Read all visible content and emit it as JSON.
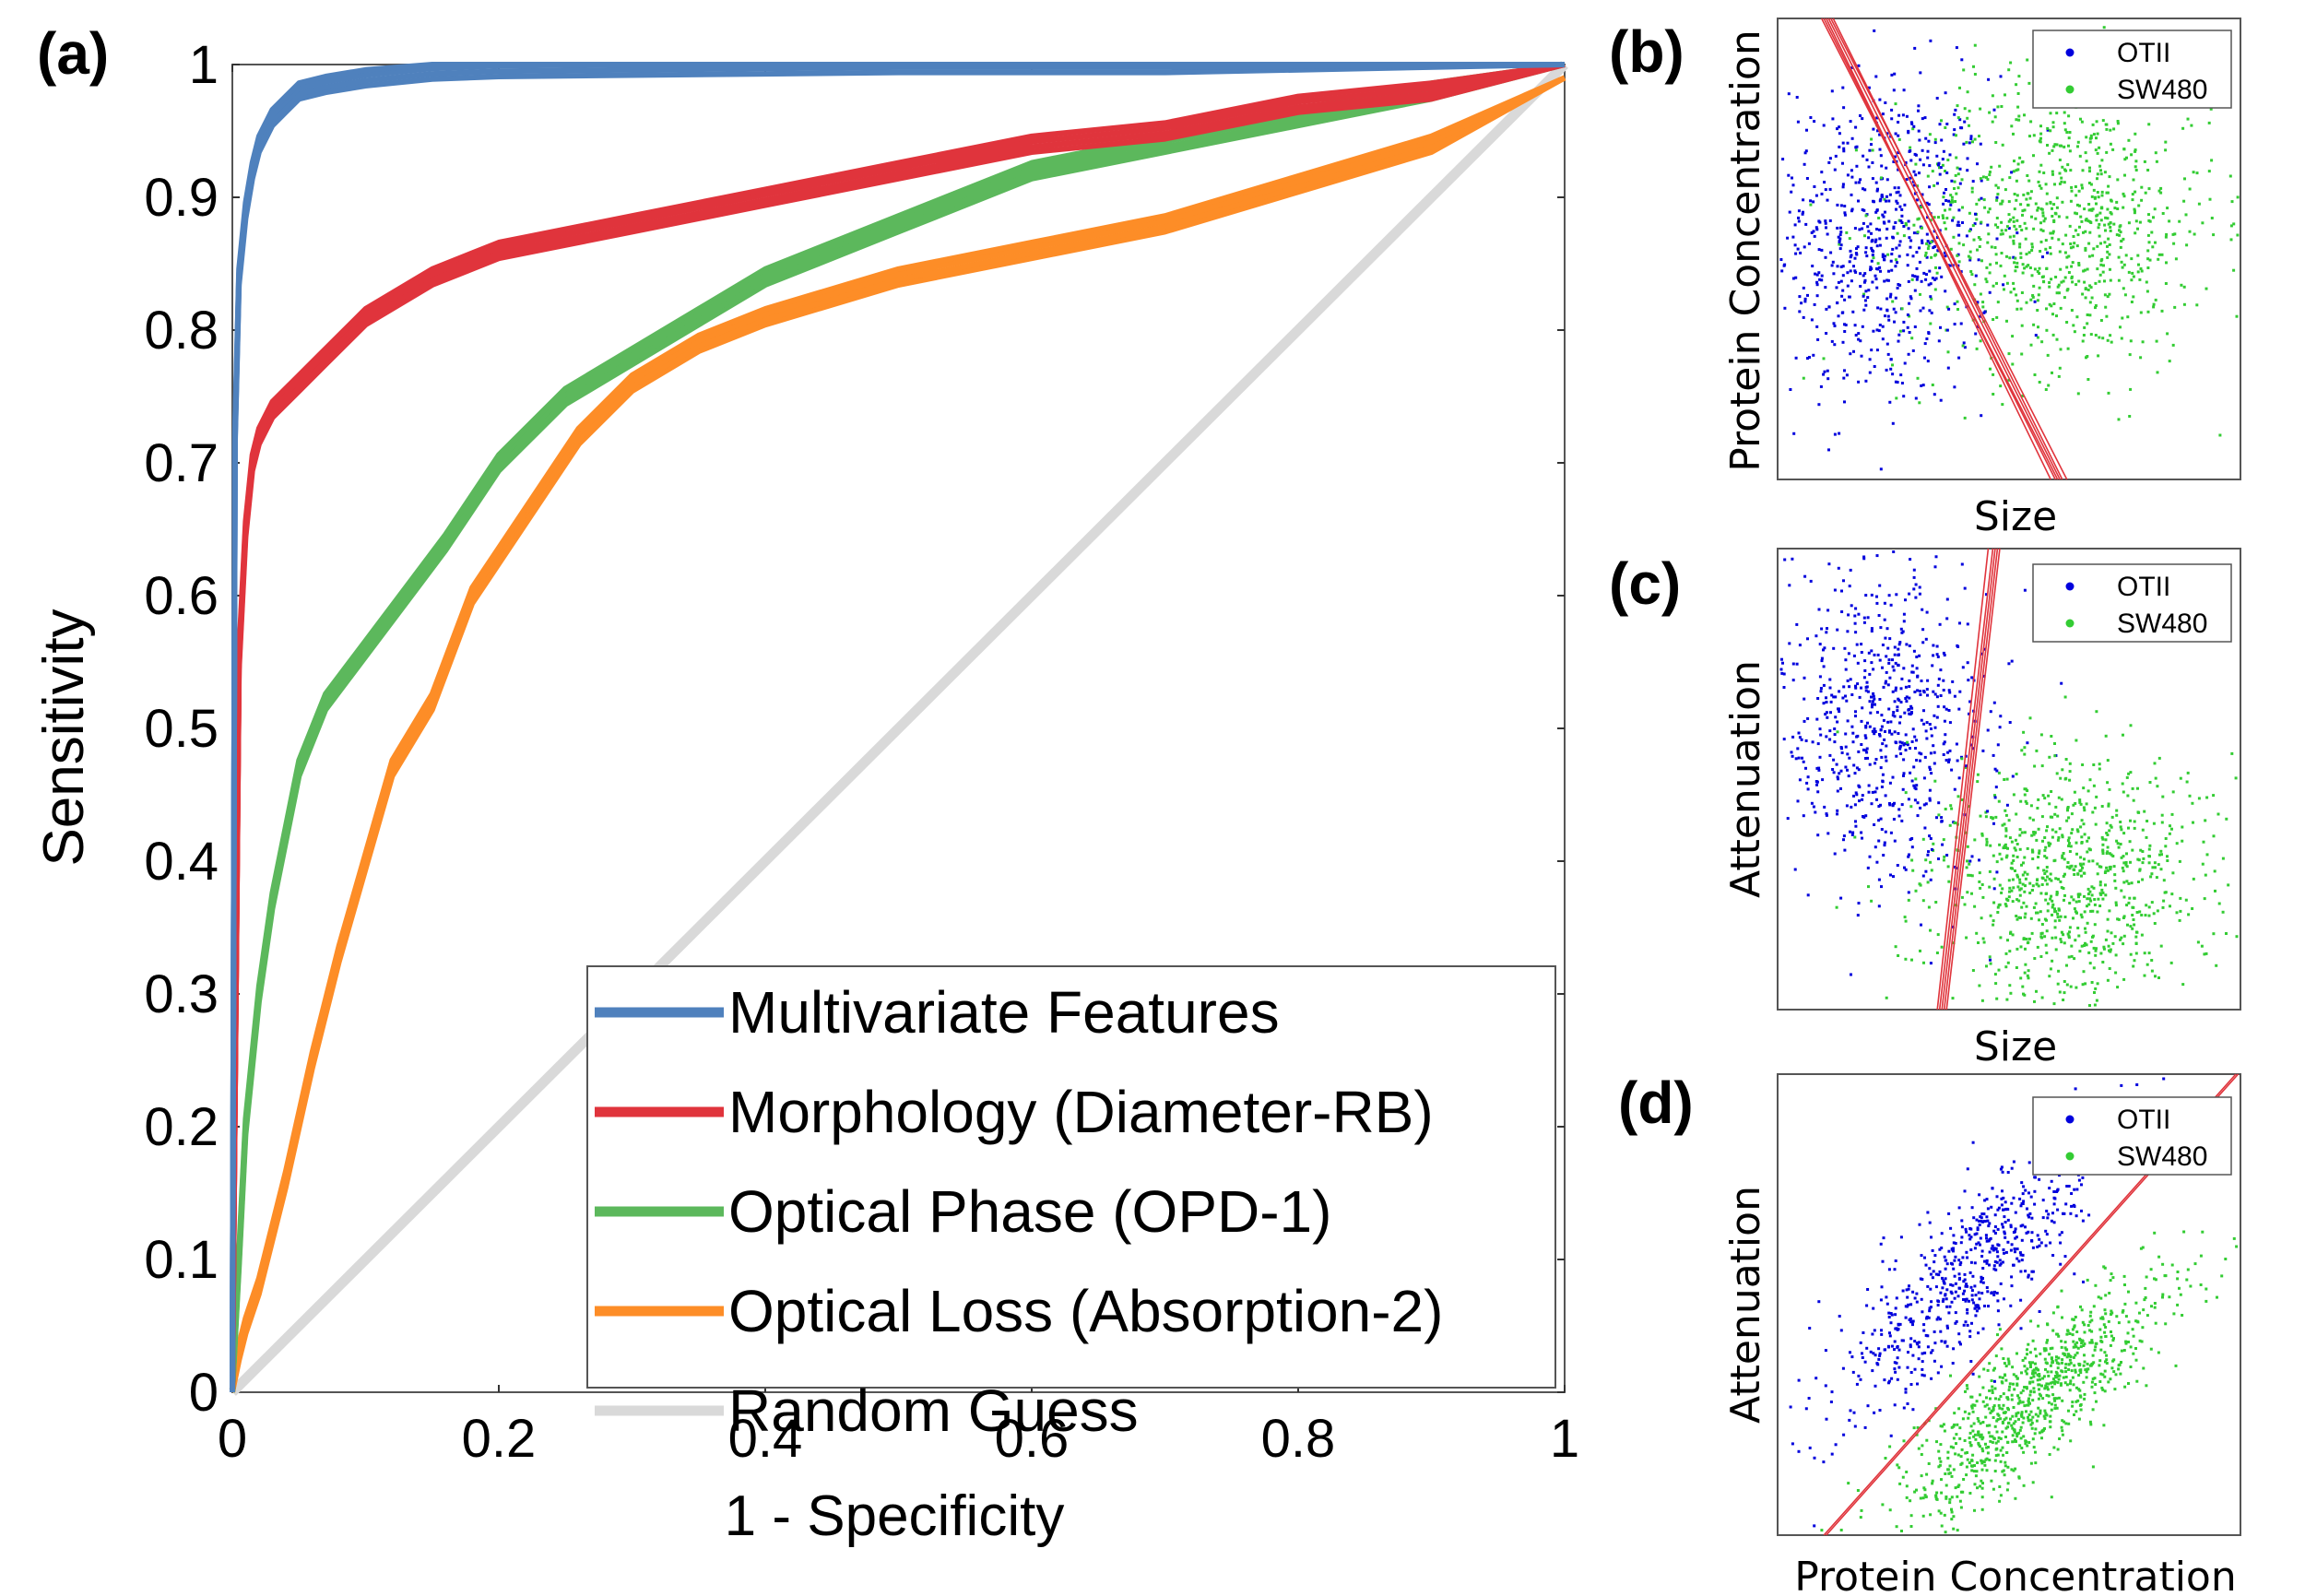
{
  "chart_data": [
    {
      "panel": "(a)",
      "type": "line",
      "xlabel": "1 - Specificity",
      "ylabel": "Sensitivity",
      "xlim": [
        0,
        1
      ],
      "ylim": [
        0,
        1
      ],
      "xticks": [
        "0",
        "0.2",
        "0.4",
        "0.6",
        "0.8",
        "1"
      ],
      "yticks": [
        "0",
        "0.1",
        "0.2",
        "0.3",
        "0.4",
        "0.5",
        "0.6",
        "0.7",
        "0.8",
        "0.9",
        "1"
      ],
      "legend_position": "bottom-right",
      "series": [
        {
          "name": "Multivariate Features",
          "color": "#4f81bd",
          "x": [
            0,
            0.002,
            0.005,
            0.01,
            0.015,
            0.02,
            0.03,
            0.04,
            0.05,
            0.07,
            0.1,
            0.15,
            0.2,
            0.3,
            0.4,
            0.5,
            0.7,
            1.0
          ],
          "y": [
            0,
            0.72,
            0.84,
            0.89,
            0.92,
            0.94,
            0.96,
            0.97,
            0.98,
            0.985,
            0.99,
            0.995,
            0.997,
            0.998,
            0.999,
            1.0,
            1.0,
            1.0
          ]
        },
        {
          "name": "Morphology (Diameter-RB)",
          "color": "#e0343c",
          "x": [
            0,
            0.005,
            0.01,
            0.015,
            0.02,
            0.03,
            0.05,
            0.07,
            0.1,
            0.15,
            0.2,
            0.25,
            0.3,
            0.4,
            0.5,
            0.6,
            0.7,
            0.8,
            0.9,
            1.0
          ],
          "y": [
            0,
            0.55,
            0.65,
            0.7,
            0.72,
            0.74,
            0.76,
            0.78,
            0.81,
            0.84,
            0.86,
            0.87,
            0.88,
            0.9,
            0.92,
            0.94,
            0.95,
            0.97,
            0.98,
            1.0
          ]
        },
        {
          "name": "Optical Phase (OPD-1)",
          "color": "#5cb85c",
          "x": [
            0,
            0.005,
            0.01,
            0.02,
            0.03,
            0.05,
            0.07,
            0.1,
            0.13,
            0.16,
            0.2,
            0.25,
            0.3,
            0.35,
            0.4,
            0.5,
            0.6,
            0.7,
            0.8,
            0.9,
            1.0
          ],
          "y": [
            0,
            0.1,
            0.2,
            0.3,
            0.37,
            0.47,
            0.52,
            0.56,
            0.6,
            0.64,
            0.7,
            0.75,
            0.78,
            0.81,
            0.84,
            0.88,
            0.92,
            0.94,
            0.96,
            0.98,
            1.0
          ]
        },
        {
          "name": "Optical Loss (Absorption-2)",
          "color": "#fd8d27",
          "x": [
            0,
            0.005,
            0.01,
            0.02,
            0.04,
            0.06,
            0.08,
            0.1,
            0.12,
            0.15,
            0.18,
            0.22,
            0.26,
            0.3,
            0.35,
            0.4,
            0.5,
            0.6,
            0.7,
            0.8,
            0.9,
            1.0
          ],
          "y": [
            0,
            0.03,
            0.05,
            0.08,
            0.16,
            0.25,
            0.33,
            0.4,
            0.47,
            0.52,
            0.6,
            0.66,
            0.72,
            0.76,
            0.79,
            0.81,
            0.84,
            0.86,
            0.88,
            0.91,
            0.94,
            0.99
          ]
        },
        {
          "name": "Random Guess",
          "color": "#d9d9d9",
          "x": [
            0,
            1
          ],
          "y": [
            0,
            1
          ]
        }
      ]
    },
    {
      "panel": "(b)",
      "type": "scatter",
      "xlabel": "Size",
      "ylabel": "Protein Concentration",
      "legend_position": "top-right",
      "series": [
        {
          "name": "OTII",
          "color": "#0000dd"
        },
        {
          "name": "SW480",
          "color": "#33cc33"
        }
      ]
    },
    {
      "panel": "(c)",
      "type": "scatter",
      "xlabel": "Size",
      "ylabel": "Attenuation",
      "legend_position": "top-right",
      "series": [
        {
          "name": "OTII",
          "color": "#0000dd"
        },
        {
          "name": "SW480",
          "color": "#33cc33"
        }
      ]
    },
    {
      "panel": "(d)",
      "type": "scatter",
      "xlabel": "Protein Concentration",
      "ylabel": "Attenuation",
      "legend_position": "top-right",
      "series": [
        {
          "name": "OTII",
          "color": "#0000dd"
        },
        {
          "name": "SW480",
          "color": "#33cc33"
        }
      ]
    }
  ]
}
